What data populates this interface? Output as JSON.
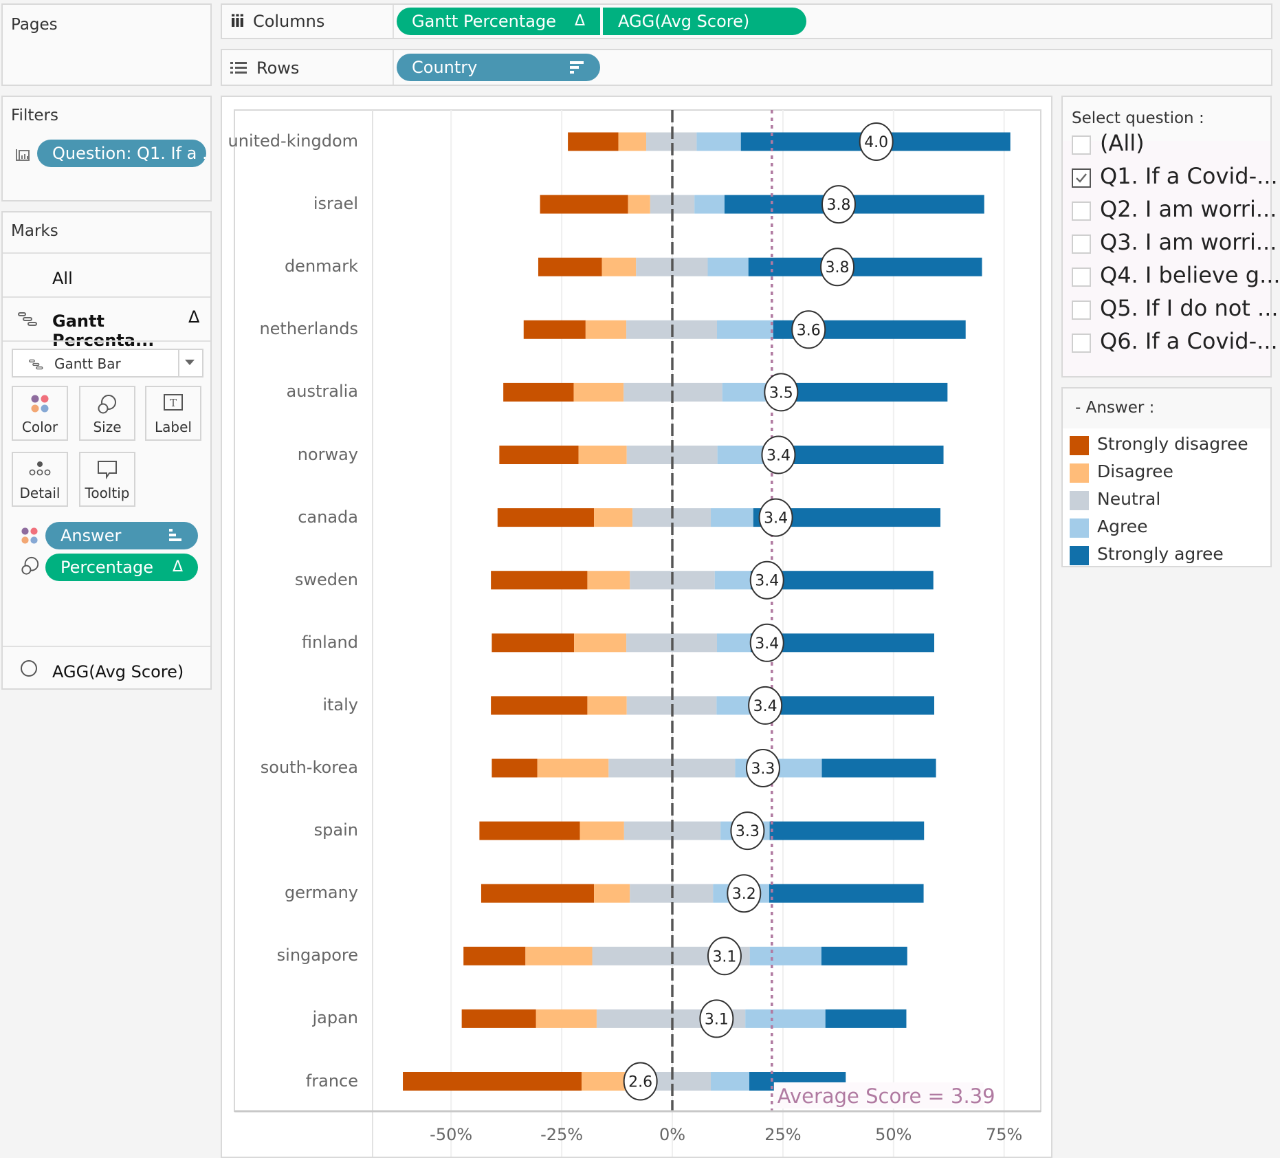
{
  "pages": {
    "title": "Pages"
  },
  "shelves": {
    "columns": {
      "label": "Columns",
      "pills": [
        {
          "text": "Gantt Percentage",
          "icon": "delta-icon",
          "icon_glyph": "Δ",
          "color": "#00b180"
        },
        {
          "text": "AGG(Avg Score)",
          "color": "#00b180"
        }
      ]
    },
    "rows": {
      "label": "Rows",
      "pills": [
        {
          "text": "Country",
          "icon": "sort-descending-icon",
          "color": "#4996b2"
        }
      ]
    }
  },
  "filters": {
    "title": "Filters",
    "pill": "Question: Q1. If a .."
  },
  "marks": {
    "title": "Marks",
    "all_label": "All",
    "card_title": "Gantt Percenta...",
    "card_delta": "Δ",
    "mark_type": "Gantt Bar",
    "buttons": [
      "Color",
      "Size",
      "Label",
      "Detail",
      "Tooltip"
    ],
    "fields": [
      {
        "text": "Answer",
        "type": "color",
        "color": "#4996b2"
      },
      {
        "text": "Percentage",
        "type": "size",
        "delta": "Δ",
        "color": "#00b180"
      }
    ],
    "secondary_card": "AGG(Avg Score)"
  },
  "question_filter": {
    "title": "Select question :",
    "items": [
      {
        "label": "(All)",
        "checked": false
      },
      {
        "label": "Q1. If a Covid-...",
        "checked": true
      },
      {
        "label": "Q2. I am worri...",
        "checked": false
      },
      {
        "label": "Q3. I am worri...",
        "checked": false
      },
      {
        "label": "Q4. I believe g...",
        "checked": false
      },
      {
        "label": "Q5. If I do not ...",
        "checked": false
      },
      {
        "label": "Q6. If a Covid-...",
        "checked": false
      }
    ]
  },
  "legend": {
    "title": "- Answer :",
    "items": [
      {
        "label": "Strongly disagree",
        "color": "#c85200"
      },
      {
        "label": "Disagree",
        "color": "#ffbc79"
      },
      {
        "label": "Neutral",
        "color": "#c8d0d9"
      },
      {
        "label": "Agree",
        "color": "#a3cce9"
      },
      {
        "label": "Strongly agree",
        "color": "#1170aa"
      }
    ]
  },
  "chart_data": {
    "type": "bar",
    "subtype": "diverging-stacked-gantt",
    "title": "",
    "xlabel": "",
    "ylabel": "",
    "xlim": [
      -62,
      80
    ],
    "x_ticks": [
      "-50%",
      "-25%",
      "0%",
      "25%",
      "50%",
      "75%"
    ],
    "x_tick_values": [
      -50,
      -25,
      0,
      25,
      50,
      75
    ],
    "grid": true,
    "series_names": [
      "Strongly disagree",
      "Disagree",
      "Neutral",
      "Agree",
      "Strongly agree"
    ],
    "categories": [
      "united-kingdom",
      "israel",
      "denmark",
      "netherlands",
      "australia",
      "norway",
      "canada",
      "sweden",
      "finland",
      "italy",
      "south-korea",
      "spain",
      "germany",
      "singapore",
      "japan",
      "france"
    ],
    "rows": [
      {
        "country": "united-kingdom",
        "start": -23.6,
        "values": [
          11.4,
          6.3,
          11.4,
          10.0,
          60.9
        ],
        "avg_score": "4.0",
        "score_pos": 46.1
      },
      {
        "country": "israel",
        "start": -29.9,
        "values": [
          19.9,
          5.0,
          10.0,
          6.8,
          58.7
        ],
        "avg_score": "3.8",
        "score_pos": 37.6
      },
      {
        "country": "denmark",
        "start": -30.3,
        "values": [
          14.4,
          7.7,
          16.2,
          9.2,
          52.8
        ],
        "avg_score": "3.8",
        "score_pos": 37.3
      },
      {
        "country": "netherlands",
        "start": -33.6,
        "values": [
          14.0,
          9.2,
          20.5,
          12.7,
          43.5
        ],
        "avg_score": "3.6",
        "score_pos": 30.8
      },
      {
        "country": "australia",
        "start": -38.2,
        "values": [
          15.9,
          11.3,
          22.3,
          10.5,
          40.4
        ],
        "avg_score": "3.5",
        "score_pos": 24.6
      },
      {
        "country": "norway",
        "start": -39.1,
        "values": [
          17.9,
          10.9,
          20.5,
          10.7,
          40.4
        ],
        "avg_score": "3.4",
        "score_pos": 24.0
      },
      {
        "country": "canada",
        "start": -39.5,
        "values": [
          21.8,
          8.7,
          17.7,
          9.6,
          42.3
        ],
        "avg_score": "3.4",
        "score_pos": 23.4
      },
      {
        "country": "sweden",
        "start": -41.0,
        "values": [
          21.8,
          9.6,
          19.2,
          8.1,
          41.3
        ],
        "avg_score": "3.4",
        "score_pos": 21.4
      },
      {
        "country": "finland",
        "start": -40.8,
        "values": [
          18.6,
          11.8,
          20.5,
          7.6,
          41.5
        ],
        "avg_score": "3.4",
        "score_pos": 21.4
      },
      {
        "country": "italy",
        "start": -41.0,
        "values": [
          21.8,
          8.9,
          20.3,
          7.7,
          41.5
        ],
        "avg_score": "3.4",
        "score_pos": 21.0
      },
      {
        "country": "south-korea",
        "start": -40.8,
        "values": [
          10.3,
          16.1,
          28.6,
          19.6,
          25.8
        ],
        "avg_score": "3.3",
        "score_pos": 20.5
      },
      {
        "country": "spain",
        "start": -43.6,
        "values": [
          22.7,
          10.0,
          21.8,
          11.1,
          34.9
        ],
        "avg_score": "3.3",
        "score_pos": 17.0
      },
      {
        "country": "germany",
        "start": -43.2,
        "values": [
          25.5,
          8.1,
          18.8,
          12.7,
          34.9
        ],
        "avg_score": "3.2",
        "score_pos": 16.2
      },
      {
        "country": "singapore",
        "start": -47.2,
        "values": [
          14.0,
          15.1,
          35.6,
          16.2,
          19.4
        ],
        "avg_score": "3.1",
        "score_pos": 11.8
      },
      {
        "country": "japan",
        "start": -47.6,
        "values": [
          16.8,
          13.7,
          33.6,
          18.1,
          18.3
        ],
        "avg_score": "3.1",
        "score_pos": 10.0
      },
      {
        "country": "france",
        "start": -60.9,
        "values": [
          40.4,
          11.3,
          17.9,
          8.7,
          21.8
        ],
        "avg_score": "2.6",
        "score_pos": -7.2
      }
    ],
    "reference_lines": [
      {
        "name": "zero-line",
        "value": 0,
        "style": "dashed",
        "color": "#555555"
      },
      {
        "name": "average-score-line",
        "value": 22.5,
        "style": "dotted",
        "color": "#b07aa1",
        "label": "Average Score = 3.39"
      }
    ]
  }
}
